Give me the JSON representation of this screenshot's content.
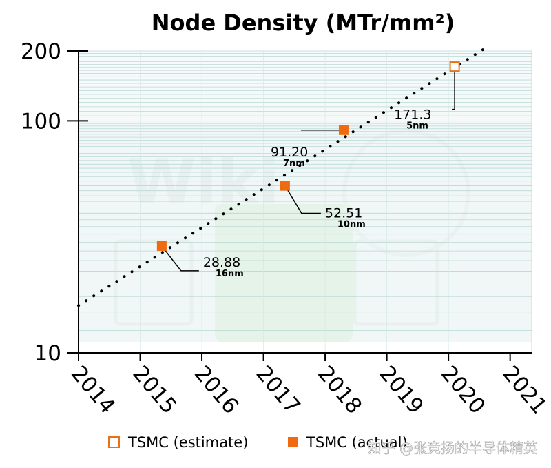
{
  "chart_data": {
    "type": "scatter",
    "title": "Node Density (MTr/mm²)",
    "xlabel": "",
    "ylabel": "",
    "x_scale": "linear",
    "y_scale": "log",
    "xlim": [
      2014,
      2021.35
    ],
    "ylim": [
      10,
      200
    ],
    "x_ticks": [
      "2014",
      "2015",
      "2016",
      "2017",
      "2018",
      "2019",
      "2020",
      "2021"
    ],
    "y_ticks": [
      "10",
      "100",
      "200"
    ],
    "grid": true,
    "legend_position": "bottom",
    "series": [
      {
        "name": "TSMC (estimate)",
        "marker": "hollow-square",
        "color": "#e8711a",
        "points": [
          {
            "x": 2020.1,
            "y": 171.3,
            "label": "171.3",
            "node": "5nm"
          }
        ]
      },
      {
        "name": "TSMC (actual)",
        "marker": "filled-square",
        "color": "#f06a10",
        "points": [
          {
            "x": 2015.35,
            "y": 28.88,
            "label": "28.88",
            "node": "16nm"
          },
          {
            "x": 2017.35,
            "y": 52.51,
            "label": "52.51",
            "node": "10nm"
          },
          {
            "x": 2018.3,
            "y": 91.2,
            "label": "91.20",
            "node": "7nm"
          }
        ]
      }
    ],
    "trendline": {
      "style": "dotted",
      "color": "#000000",
      "from": {
        "x": 2014.0,
        "y": 16
      },
      "to": {
        "x": 2020.65,
        "y": 210
      }
    }
  },
  "legend": {
    "estimate_label": "TSMC (estimate)",
    "actual_label": "TSMC (actual)"
  },
  "watermark": {
    "text": "知乎 @张竞扬的半导体精英"
  }
}
